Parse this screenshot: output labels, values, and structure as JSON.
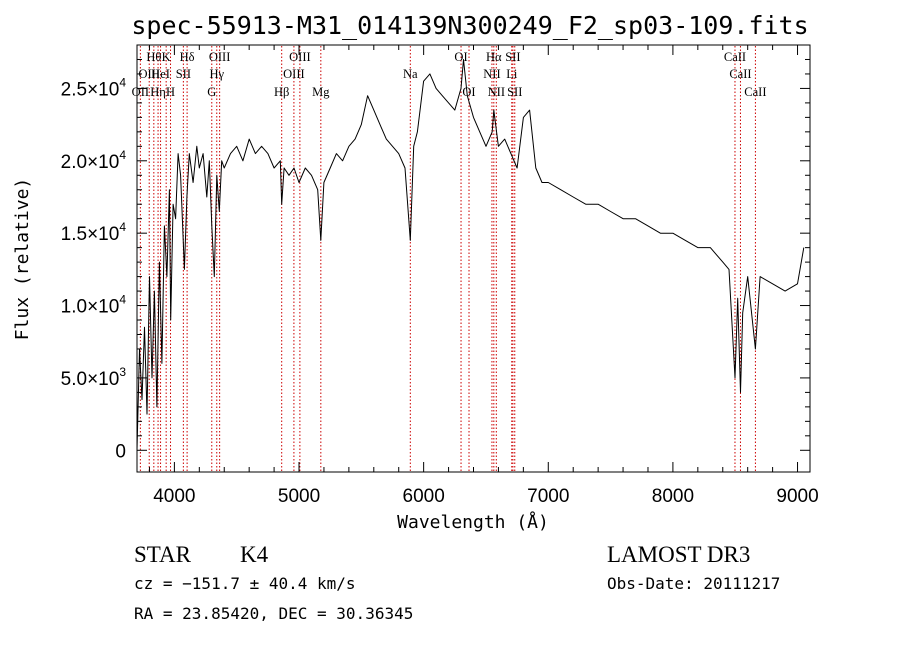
{
  "chart_data": {
    "type": "line",
    "title": "spec-55913-M31_014139N300249_F2_sp03-109.fits",
    "xlabel": "Wavelength (Å)",
    "ylabel": "Flux (relative)",
    "xlim": [
      3700,
      9100
    ],
    "ylim": [
      -1500,
      28000
    ],
    "x_ticks": [
      4000,
      5000,
      6000,
      7000,
      8000,
      9000
    ],
    "x_tick_labels": [
      "4000",
      "5000",
      "6000",
      "7000",
      "8000",
      "9000"
    ],
    "y_ticks": [
      0,
      5000,
      10000,
      15000,
      20000,
      25000
    ],
    "y_tick_labels": [
      {
        "mantissa": "0",
        "exponent": ""
      },
      {
        "mantissa": "5.0×10",
        "exponent": "3"
      },
      {
        "mantissa": "1.0×10",
        "exponent": "4"
      },
      {
        "mantissa": "1.5×10",
        "exponent": "4"
      },
      {
        "mantissa": "2.0×10",
        "exponent": "4"
      },
      {
        "mantissa": "2.5×10",
        "exponent": "4"
      }
    ],
    "line_color": "#000000",
    "marker_color": "#cc0000",
    "series": [
      {
        "x": [
          3700,
          3720,
          3740,
          3760,
          3780,
          3800,
          3820,
          3840,
          3860,
          3880,
          3900,
          3920,
          3940,
          3960,
          3970,
          3990,
          4010,
          4030,
          4050,
          4080,
          4100,
          4120,
          4150,
          4180,
          4200,
          4230,
          4260,
          4280,
          4300,
          4320,
          4340,
          4360,
          4380,
          4400,
          4450,
          4500,
          4550,
          4600,
          4650,
          4700,
          4750,
          4800,
          4850,
          4861,
          4880,
          4920,
          4960,
          5000,
          5050,
          5100,
          5150,
          5175,
          5200,
          5250,
          5300,
          5350,
          5400,
          5450,
          5500,
          5550,
          5600,
          5650,
          5700,
          5750,
          5800,
          5850,
          5893,
          5920,
          5950,
          6000,
          6050,
          6100,
          6150,
          6200,
          6250,
          6300,
          6320,
          6350,
          6400,
          6450,
          6500,
          6550,
          6563,
          6600,
          6650,
          6700,
          6750,
          6800,
          6850,
          6900,
          6950,
          7000,
          7100,
          7200,
          7300,
          7400,
          7500,
          7600,
          7700,
          7800,
          7900,
          8000,
          8100,
          8200,
          8300,
          8400,
          8450,
          8498,
          8520,
          8542,
          8560,
          8600,
          8662,
          8700,
          8800,
          8900,
          9000,
          9050
        ],
        "values": [
          0,
          7000,
          3500,
          8500,
          2500,
          12000,
          5000,
          11000,
          3000,
          13000,
          6000,
          15500,
          12000,
          18000,
          9000,
          17000,
          16000,
          20500,
          19000,
          12500,
          17500,
          20500,
          18500,
          21000,
          19500,
          20500,
          17500,
          20000,
          15500,
          12000,
          19000,
          16500,
          20000,
          19500,
          20500,
          21000,
          20000,
          21500,
          20500,
          21000,
          20500,
          19500,
          20000,
          17000,
          19500,
          19000,
          19500,
          18500,
          19500,
          19000,
          18000,
          14500,
          18500,
          19500,
          20500,
          20000,
          21000,
          21500,
          22500,
          24500,
          23500,
          22500,
          21500,
          21000,
          20500,
          19500,
          14500,
          21000,
          22000,
          25500,
          26000,
          25000,
          24500,
          24000,
          23500,
          25000,
          27000,
          24500,
          23000,
          22000,
          21000,
          22000,
          23500,
          21000,
          21500,
          20500,
          19500,
          23000,
          23500,
          19500,
          18500,
          18500,
          18000,
          17500,
          17000,
          17000,
          16500,
          16000,
          16000,
          15500,
          15000,
          15000,
          14500,
          14000,
          14000,
          13000,
          12500,
          5000,
          10500,
          4000,
          9500,
          12000,
          7000,
          12000,
          11500,
          11000,
          11500,
          14000
        ]
      }
    ],
    "spectral_lines": [
      {
        "x": 3727,
        "label": "OII",
        "row": 3
      },
      {
        "x": 3798,
        "label": "OIII",
        "row": 1
      },
      {
        "x": 3835,
        "label": "Hθ",
        "row": 0
      },
      {
        "x": 3869,
        "label": "Hη",
        "row": 2
      },
      {
        "x": 3889,
        "label": "HeI",
        "row": 1
      },
      {
        "x": 3934,
        "label": "K",
        "row": 0
      },
      {
        "x": 3969,
        "label": "H",
        "row": 2
      },
      {
        "x": 4072,
        "label": "SII",
        "row": 1
      },
      {
        "x": 4102,
        "label": "Hδ",
        "row": 0
      },
      {
        "x": 4300,
        "label": "G",
        "row": 2
      },
      {
        "x": 4340,
        "label": "Hγ",
        "row": 1
      },
      {
        "x": 4363,
        "label": "OIII",
        "row": 0
      },
      {
        "x": 4861,
        "label": "Hβ",
        "row": 2
      },
      {
        "x": 4959,
        "label": "OIII",
        "row": 1
      },
      {
        "x": 5007,
        "label": "OIII",
        "row": 0
      },
      {
        "x": 5175,
        "label": "Mg",
        "row": 2
      },
      {
        "x": 5893,
        "label": "Na",
        "row": 1
      },
      {
        "x": 6300,
        "label": "OI",
        "row": 0
      },
      {
        "x": 6364,
        "label": "OI",
        "row": 2
      },
      {
        "x": 6548,
        "label": "NII",
        "row": 1
      },
      {
        "x": 6563,
        "label": "Hα",
        "row": 0
      },
      {
        "x": 6583,
        "label": "NII",
        "row": 2
      },
      {
        "x": 6707,
        "label": "Li",
        "row": 1
      },
      {
        "x": 6716,
        "label": "SII",
        "row": 0
      },
      {
        "x": 6731,
        "label": "SII",
        "row": 2
      },
      {
        "x": 8498,
        "label": "CaII",
        "row": 0
      },
      {
        "x": 8542,
        "label": "CaII",
        "row": 1
      },
      {
        "x": 8662,
        "label": "CaII",
        "row": 2
      }
    ]
  },
  "info": {
    "class_label": "STAR",
    "subclass": "K4",
    "cz_text": "cz = −151.7 ± 40.4 km/s",
    "radec_text": "RA =  23.85420, DEC =  30.36345",
    "survey": "LAMOST DR3",
    "obs_date": "Obs-Date: 20111217"
  }
}
